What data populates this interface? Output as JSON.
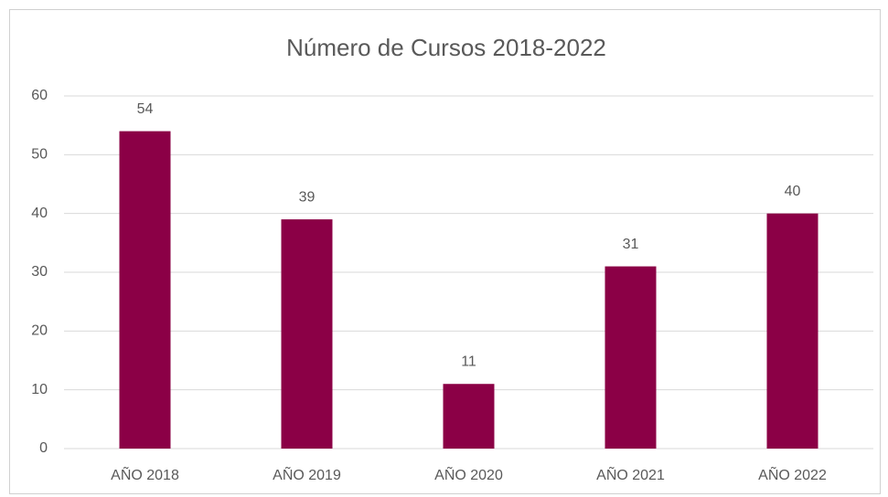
{
  "chart_data": {
    "type": "bar",
    "title": "Número de Cursos 2018-2022",
    "categories": [
      "AÑO 2018",
      "AÑO 2019",
      "AÑO 2020",
      "AÑO 2021",
      "AÑO 2022"
    ],
    "values": [
      54,
      39,
      11,
      31,
      40
    ],
    "color": "#8b0046",
    "ylim": [
      0,
      60
    ],
    "yticks": [
      0,
      10,
      20,
      30,
      40,
      50,
      60
    ],
    "grid": true
  }
}
